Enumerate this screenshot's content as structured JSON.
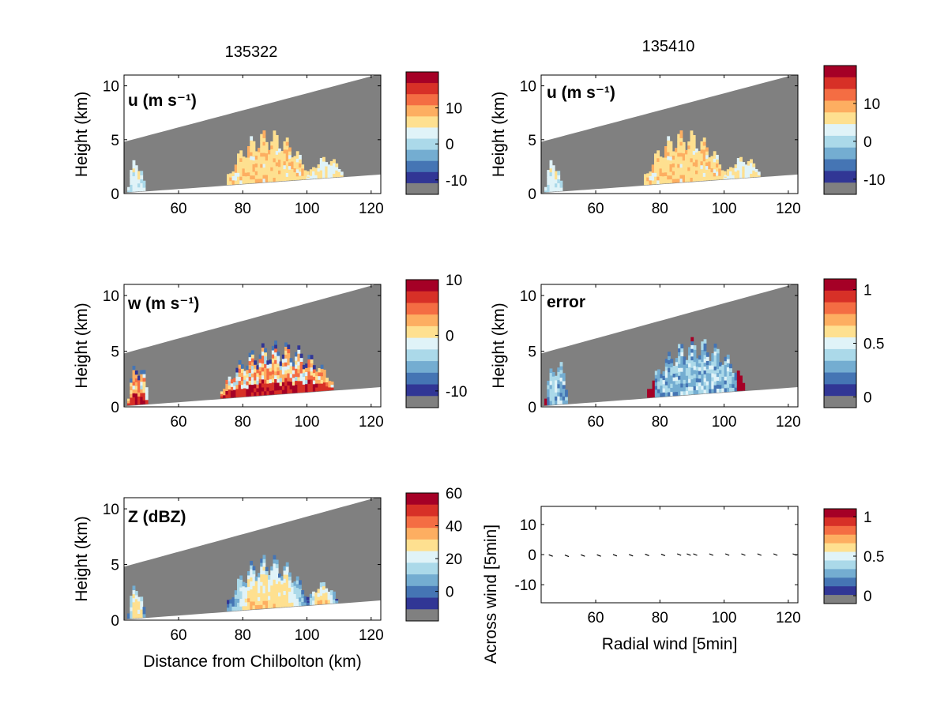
{
  "figure": {
    "column_titles": [
      "135322",
      "135410"
    ]
  },
  "colors": {
    "mask": "#808080",
    "palette": [
      "#313695",
      "#4575b4",
      "#74add1",
      "#abd9e9",
      "#e0f3f8",
      "#fee090",
      "#fdae61",
      "#f46d43",
      "#d73027",
      "#a50026"
    ]
  },
  "chart_data": [
    {
      "type": "heatmap",
      "panel": "top-left",
      "title": "135322",
      "label": "u (m s⁻¹)",
      "ylabel": "Height (km)",
      "xlabel": "",
      "xlim": [
        43,
        123
      ],
      "ylim": [
        0,
        11
      ],
      "xticks": [
        "60",
        "80",
        "100",
        "120"
      ],
      "yticks": [
        "0",
        "5",
        "10"
      ],
      "colorbar": {
        "ticks": [
          "10",
          "0",
          "-10"
        ],
        "range": [
          -14,
          20
        ]
      },
      "field": "u",
      "clouds": [
        {
          "x_range": [
            44,
            49
          ],
          "top_km": 3.5,
          "value": 1
        },
        {
          "x_range": [
            75,
            100
          ],
          "top_km": 6.0,
          "value": 5
        },
        {
          "x_range": [
            100,
            111
          ],
          "top_km": 3.5,
          "value": 3
        }
      ]
    },
    {
      "type": "heatmap",
      "panel": "top-right",
      "title": "135410",
      "label": "u (m s⁻¹)",
      "ylabel": "Height (km)",
      "xlabel": "",
      "xlim": [
        43,
        123
      ],
      "ylim": [
        0,
        11
      ],
      "xticks": [
        "60",
        "80",
        "100",
        "120"
      ],
      "yticks": [
        "0",
        "5",
        "10"
      ],
      "colorbar": {
        "ticks": [
          "10",
          "0",
          "-10"
        ],
        "range": [
          -14,
          20
        ]
      },
      "field": "u",
      "clouds": [
        {
          "x_range": [
            44,
            49
          ],
          "top_km": 3.5,
          "value": 1
        },
        {
          "x_range": [
            75,
            100
          ],
          "top_km": 6.0,
          "value": 5
        },
        {
          "x_range": [
            100,
            111
          ],
          "top_km": 3.5,
          "value": 3
        }
      ]
    },
    {
      "type": "heatmap",
      "panel": "middle-left",
      "label": "w (m s⁻¹)",
      "ylabel": "Height (km)",
      "xlabel": "",
      "xlim": [
        43,
        123
      ],
      "ylim": [
        0,
        11
      ],
      "xticks": [
        "60",
        "80",
        "100",
        "120"
      ],
      "yticks": [
        "0",
        "5",
        "10"
      ],
      "colorbar": {
        "ticks": [
          "10",
          "0",
          "-10"
        ],
        "range": [
          -13,
          10
        ]
      },
      "field": "w",
      "clouds": [
        {
          "x_range": [
            44,
            50
          ],
          "top_km": 4.5,
          "value": 0
        },
        {
          "x_range": [
            73,
            108
          ],
          "top_km": 6.0,
          "value": 0
        }
      ]
    },
    {
      "type": "heatmap",
      "panel": "middle-right",
      "label": "error",
      "ylabel": "Height (km)",
      "xlabel": "",
      "xlim": [
        43,
        123
      ],
      "ylim": [
        0,
        11
      ],
      "xticks": [
        "60",
        "80",
        "100",
        "120"
      ],
      "yticks": [
        "0",
        "5",
        "10"
      ],
      "colorbar": {
        "ticks": [
          "1",
          "0.5",
          "0"
        ],
        "range": [
          -0.1,
          1.1
        ]
      },
      "field": "error",
      "clouds": [
        {
          "x_range": [
            44,
            51
          ],
          "top_km": 4.5,
          "value": 1
        },
        {
          "x_range": [
            76,
            106
          ],
          "top_km": 6.3,
          "value": 1
        }
      ]
    },
    {
      "type": "heatmap",
      "panel": "bottom-left",
      "label": "Z (dBZ)",
      "ylabel": "Height (km)",
      "xlabel": "Distance from Chilbolton (km)",
      "xlim": [
        43,
        123
      ],
      "ylim": [
        0,
        11
      ],
      "xticks": [
        "60",
        "80",
        "100",
        "120"
      ],
      "yticks": [
        "0",
        "5",
        "10"
      ],
      "colorbar": {
        "ticks": [
          "60",
          "40",
          "20",
          "0"
        ],
        "range": [
          -18,
          60
        ]
      },
      "field": "Z",
      "clouds": [
        {
          "x_range": [
            44,
            49
          ],
          "top_km": 3.5,
          "value": 15
        },
        {
          "x_range": [
            75,
            100
          ],
          "top_km": 6.0,
          "value": 25
        },
        {
          "x_range": [
            100,
            109
          ],
          "top_km": 3.5,
          "value": 5
        }
      ]
    },
    {
      "type": "scatter",
      "panel": "bottom-right",
      "title": "",
      "xlabel": "Radial wind [5min]",
      "ylabel": "Across wind [5min]",
      "xlim": [
        43,
        123
      ],
      "ylim": [
        -16,
        16
      ],
      "xticks": [
        "60",
        "80",
        "100",
        "120"
      ],
      "yticks": [
        "10",
        "0",
        "-10"
      ],
      "colorbar": {
        "ticks": [
          "1",
          "0.5",
          "0"
        ],
        "range": [
          -0.1,
          1.1
        ]
      },
      "series": [
        {
          "x": [
            46,
            51,
            56,
            61,
            66,
            71,
            76,
            81,
            86,
            89,
            91,
            96,
            101,
            106,
            111,
            116,
            122
          ],
          "y": [
            -0.3,
            -0.4,
            -0.3,
            -0.3,
            -0.2,
            -0.2,
            -0.1,
            -0.1,
            0,
            0,
            0,
            0,
            0,
            0,
            0,
            0,
            0
          ]
        }
      ]
    }
  ]
}
